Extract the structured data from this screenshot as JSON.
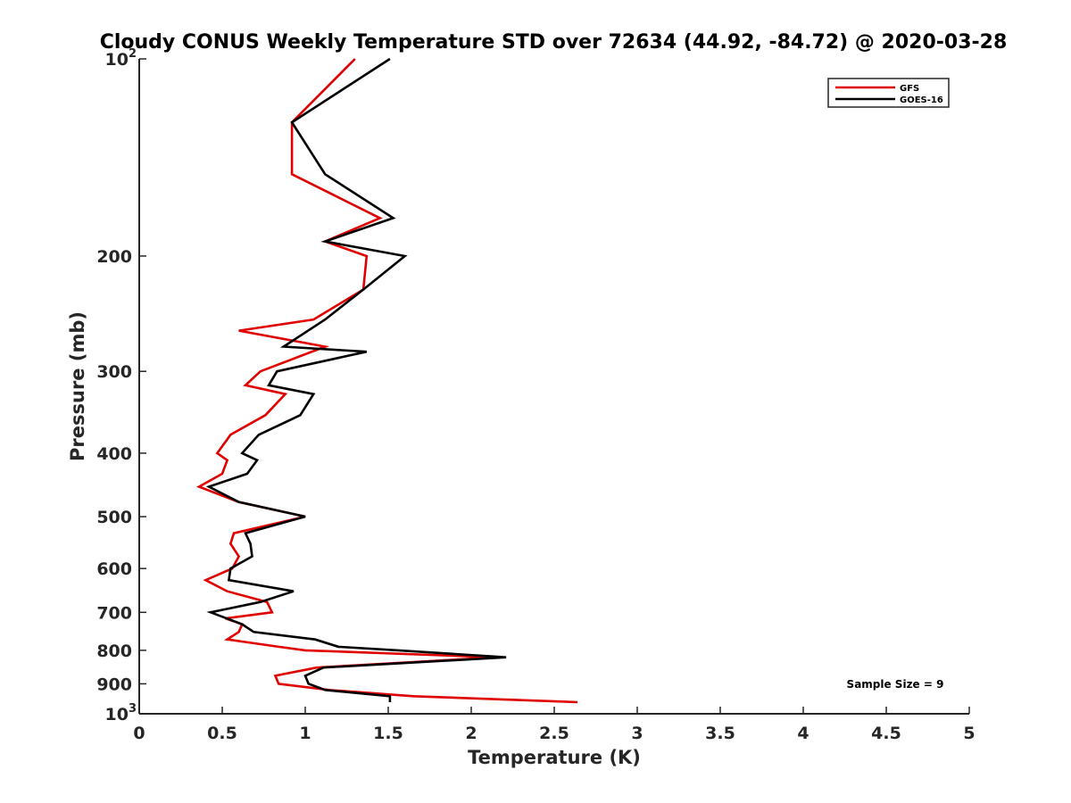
{
  "chart_data": {
    "type": "line",
    "title": "Cloudy CONUS Weekly Temperature STD over 72634 (44.92, -84.72) @ 2020-03-28",
    "xlabel": "Temperature (K)",
    "ylabel": "Pressure (mb)",
    "xlim": [
      0,
      5
    ],
    "ylim": [
      100,
      1000
    ],
    "yscale": "log",
    "y_reversed": true,
    "x_ticks": [
      "0",
      "0.5",
      "1",
      "1.5",
      "2",
      "2.5",
      "3",
      "3.5",
      "4",
      "4.5",
      "5"
    ],
    "x_tick_values": [
      0,
      0.5,
      1,
      1.5,
      2,
      2.5,
      3,
      3.5,
      4,
      4.5,
      5
    ],
    "y_ticks": [
      {
        "value": 100,
        "label": "10",
        "sup": "2"
      },
      {
        "value": 200,
        "label": "200",
        "sup": ""
      },
      {
        "value": 300,
        "label": "300",
        "sup": ""
      },
      {
        "value": 400,
        "label": "400",
        "sup": ""
      },
      {
        "value": 500,
        "label": "500",
        "sup": ""
      },
      {
        "value": 600,
        "label": "600",
        "sup": ""
      },
      {
        "value": 700,
        "label": "700",
        "sup": ""
      },
      {
        "value": 800,
        "label": "800",
        "sup": ""
      },
      {
        "value": 900,
        "label": "900",
        "sup": ""
      },
      {
        "value": 1000,
        "label": "10",
        "sup": "3"
      }
    ],
    "grid": false,
    "legend_position": "top-right",
    "annotation": "Sample Size = 9",
    "series": [
      {
        "name": "GFS",
        "color": "#e00000",
        "points": [
          [
            1.3,
            100
          ],
          [
            0.92,
            125
          ],
          [
            0.92,
            150
          ],
          [
            1.45,
            175
          ],
          [
            1.12,
            190
          ],
          [
            1.37,
            200
          ],
          [
            1.35,
            225
          ],
          [
            1.05,
            250
          ],
          [
            0.6,
            260
          ],
          [
            1.12,
            275
          ],
          [
            0.73,
            300
          ],
          [
            0.64,
            315
          ],
          [
            0.88,
            325
          ],
          [
            0.76,
            350
          ],
          [
            0.55,
            375
          ],
          [
            0.47,
            400
          ],
          [
            0.53,
            410
          ],
          [
            0.5,
            430
          ],
          [
            0.36,
            450
          ],
          [
            0.6,
            475
          ],
          [
            1.0,
            500
          ],
          [
            0.57,
            530
          ],
          [
            0.55,
            550
          ],
          [
            0.6,
            575
          ],
          [
            0.56,
            600
          ],
          [
            0.4,
            625
          ],
          [
            0.53,
            650
          ],
          [
            0.77,
            675
          ],
          [
            0.8,
            700
          ],
          [
            0.52,
            715
          ],
          [
            0.62,
            730
          ],
          [
            0.6,
            750
          ],
          [
            0.53,
            770
          ],
          [
            0.84,
            790
          ],
          [
            1.0,
            800
          ],
          [
            2.15,
            820
          ],
          [
            1.07,
            850
          ],
          [
            0.82,
            875
          ],
          [
            0.84,
            900
          ],
          [
            1.15,
            920
          ],
          [
            1.65,
            940
          ],
          [
            2.64,
            960
          ]
        ]
      },
      {
        "name": "GOES-16",
        "color": "#000000",
        "points": [
          [
            1.51,
            100
          ],
          [
            0.92,
            125
          ],
          [
            1.12,
            150
          ],
          [
            1.53,
            175
          ],
          [
            1.12,
            190
          ],
          [
            1.6,
            200
          ],
          [
            1.35,
            225
          ],
          [
            1.12,
            250
          ],
          [
            0.87,
            275
          ],
          [
            1.37,
            280
          ],
          [
            0.83,
            300
          ],
          [
            0.78,
            315
          ],
          [
            1.05,
            325
          ],
          [
            0.97,
            350
          ],
          [
            0.72,
            375
          ],
          [
            0.62,
            400
          ],
          [
            0.71,
            410
          ],
          [
            0.65,
            430
          ],
          [
            0.42,
            450
          ],
          [
            0.6,
            475
          ],
          [
            1.0,
            500
          ],
          [
            0.64,
            530
          ],
          [
            0.67,
            550
          ],
          [
            0.68,
            575
          ],
          [
            0.55,
            600
          ],
          [
            0.54,
            625
          ],
          [
            0.93,
            650
          ],
          [
            0.73,
            675
          ],
          [
            0.43,
            700
          ],
          [
            0.62,
            730
          ],
          [
            0.69,
            750
          ],
          [
            1.06,
            770
          ],
          [
            1.2,
            790
          ],
          [
            1.56,
            800
          ],
          [
            2.21,
            820
          ],
          [
            1.11,
            850
          ],
          [
            1.0,
            875
          ],
          [
            1.02,
            900
          ],
          [
            1.12,
            920
          ],
          [
            1.51,
            940
          ],
          [
            1.51,
            960
          ]
        ]
      }
    ]
  }
}
